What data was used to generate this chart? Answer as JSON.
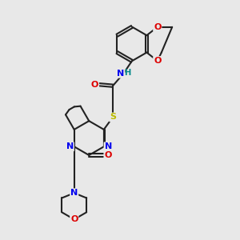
{
  "bg_color": "#e8e8e8",
  "bond_color": "#222222",
  "bond_lw": 1.5,
  "atom_colors": {
    "N": "#0000ee",
    "O": "#dd0000",
    "S": "#bbbb00",
    "H": "#008888"
  },
  "font_size": 8.0,
  "figsize": [
    3.0,
    3.0
  ],
  "dpi": 100,
  "scale": 10.0
}
